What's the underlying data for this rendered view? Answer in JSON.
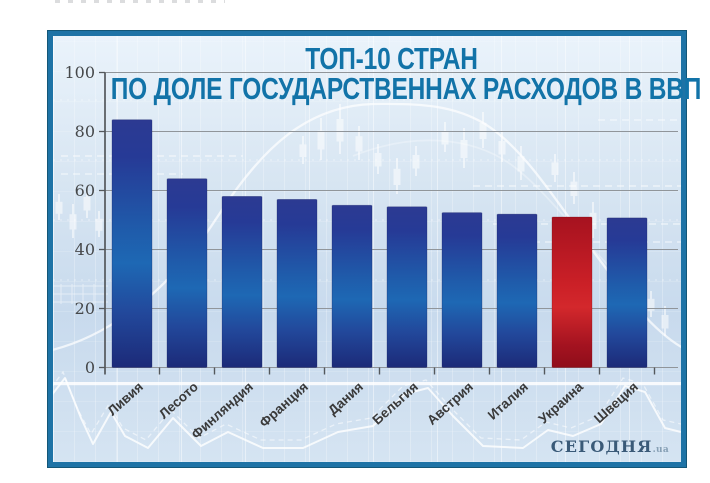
{
  "chart_data": {
    "type": "bar",
    "title": "ТОП-10 СТРАН",
    "subtitle": "ПО ДОЛЕ ГОСУДАРСТВЕННАХ РАСХОДОВ В ВВП",
    "categories": [
      "Ливия",
      "Лесото",
      "Финляндия",
      "Франция",
      "Дания",
      "Бельгия",
      "Австрия",
      "Италия",
      "Украина",
      "Швеция"
    ],
    "values": [
      84,
      64,
      58,
      57,
      55,
      54.5,
      52.5,
      52,
      51,
      50.7
    ],
    "highlight_category": "Украина",
    "highlight_index": 8,
    "ylim": [
      0,
      100
    ],
    "yticks": [
      0,
      20,
      40,
      60,
      80,
      100
    ],
    "xlabel": "",
    "ylabel": "",
    "grid": true,
    "legend": false,
    "bar_color": "#24388f",
    "highlight_color": "#c11b23"
  },
  "branding": {
    "logo_text": "СЕГОДНЯ",
    "logo_suffix": ".ua"
  },
  "colors": {
    "panel_border": "#1e73a6",
    "title": "#1273a8",
    "gridline": "#90959a",
    "axis": "#54585c",
    "tick_label": "#46484a",
    "category_label": "#3a3a3a",
    "logo": "#3a5a78"
  }
}
